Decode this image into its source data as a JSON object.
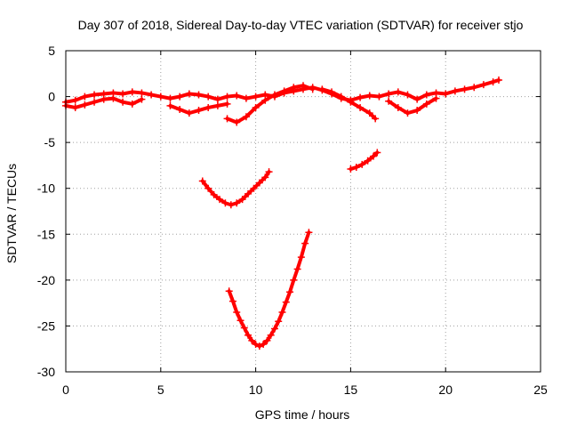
{
  "chart_data": {
    "type": "scatter",
    "title": "Day 307 of 2018, Sidereal Day-to-day VTEC variation (SDTVAR) for receiver stjo",
    "xlabel": "GPS time / hours",
    "ylabel": "SDTVAR / TECUs",
    "xlim": [
      0,
      25
    ],
    "ylim": [
      -30,
      5
    ],
    "xticks": [
      0,
      5,
      10,
      15,
      20,
      25
    ],
    "xtick_labels": [
      "0",
      "5",
      "10",
      "15",
      "20",
      "25"
    ],
    "yticks": [
      5,
      0,
      -5,
      -10,
      -15,
      -20,
      -25,
      -30
    ],
    "ytick_labels": [
      "5",
      "0",
      "-5",
      "-10",
      "-15",
      "-20",
      "-25",
      "-30"
    ],
    "grid": true,
    "legend": "none",
    "marker": "plus",
    "color": "#ff0000",
    "series": [
      {
        "x": [
          0.0,
          0.5,
          1.0,
          1.5,
          2.0,
          2.5,
          3.0,
          3.5,
          4.0,
          4.5,
          5.0,
          5.5,
          6.0,
          6.5,
          7.0,
          7.5,
          8.0,
          8.5,
          9.0,
          9.5,
          10.0,
          10.5,
          11.0,
          11.5,
          12.0,
          12.5,
          13.0,
          13.5,
          14.0,
          14.5,
          15.0,
          15.5,
          16.0,
          16.5,
          17.0,
          17.5,
          18.0,
          18.5,
          19.0,
          19.5,
          20.0,
          20.5,
          21.0,
          21.5,
          22.0,
          22.5,
          22.8
        ],
        "y": [
          -0.6,
          -0.4,
          0.0,
          0.2,
          0.3,
          0.4,
          0.3,
          0.5,
          0.4,
          0.2,
          0.0,
          -0.2,
          0.0,
          0.3,
          0.2,
          0.0,
          -0.3,
          0.0,
          0.1,
          -0.2,
          0.0,
          0.2,
          0.0,
          0.4,
          0.6,
          0.8,
          1.0,
          0.7,
          0.3,
          -0.2,
          -0.4,
          -0.1,
          0.1,
          0.0,
          0.3,
          0.5,
          0.2,
          -0.3,
          0.2,
          0.4,
          0.3,
          0.6,
          0.8,
          1.0,
          1.3,
          1.6,
          1.8
        ]
      },
      {
        "x": [
          0.0,
          0.5,
          1.0,
          1.5,
          2.0,
          2.5,
          3.0,
          3.5,
          4.0
        ],
        "y": [
          -1.0,
          -1.2,
          -0.9,
          -0.6,
          -0.3,
          -0.2,
          -0.6,
          -0.8,
          -0.3
        ]
      },
      {
        "x": [
          5.5,
          6.0,
          6.5,
          7.0,
          7.5,
          8.0,
          8.5
        ],
        "y": [
          -1.0,
          -1.4,
          -1.8,
          -1.5,
          -1.2,
          -1.0,
          -0.8
        ]
      },
      {
        "x": [
          8.5,
          9.0,
          9.5,
          10.0,
          10.5,
          11.0,
          11.5,
          12.0,
          12.5,
          13.0
        ],
        "y": [
          -2.4,
          -2.8,
          -2.2,
          -1.2,
          -0.4,
          0.2,
          0.6,
          1.0,
          1.2,
          0.8
        ]
      },
      {
        "x": [
          13.5,
          14.0,
          14.5,
          15.0,
          15.5,
          16.0,
          16.3
        ],
        "y": [
          0.8,
          0.5,
          0.0,
          -0.6,
          -1.2,
          -1.8,
          -2.4
        ]
      },
      {
        "x": [
          17.0,
          17.5,
          18.0,
          18.5,
          19.0,
          19.5
        ],
        "y": [
          -0.5,
          -1.2,
          -1.8,
          -1.5,
          -0.8,
          -0.2
        ]
      },
      {
        "x": [
          7.2,
          7.5,
          7.8,
          8.1,
          8.4,
          8.7,
          9.0,
          9.3,
          9.6,
          9.9,
          10.2,
          10.5,
          10.7
        ],
        "y": [
          -9.2,
          -10.0,
          -10.7,
          -11.2,
          -11.6,
          -11.8,
          -11.6,
          -11.2,
          -10.6,
          -10.0,
          -9.4,
          -8.8,
          -8.2
        ]
      },
      {
        "x": [
          15.0,
          15.3,
          15.6,
          15.9,
          16.2,
          16.4
        ],
        "y": [
          -7.9,
          -7.7,
          -7.4,
          -7.0,
          -6.5,
          -6.1
        ]
      },
      {
        "x": [
          8.6,
          8.8,
          9.0,
          9.2,
          9.4,
          9.6,
          9.8,
          10.0,
          10.2,
          10.4,
          10.6,
          10.8,
          11.0,
          11.2,
          11.4,
          11.6,
          11.8,
          12.0,
          12.2,
          12.4,
          12.6,
          12.8
        ],
        "y": [
          -21.2,
          -22.3,
          -23.5,
          -24.4,
          -25.2,
          -26.0,
          -26.6,
          -27.0,
          -27.2,
          -27.0,
          -26.6,
          -26.0,
          -25.3,
          -24.5,
          -23.5,
          -22.4,
          -21.3,
          -20.0,
          -18.8,
          -17.5,
          -16.0,
          -14.8
        ]
      }
    ]
  }
}
